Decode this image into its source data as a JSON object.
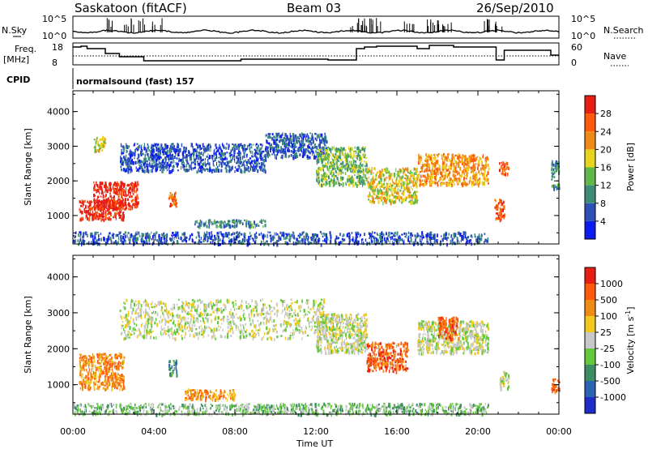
{
  "header": {
    "station": "Saskatoon (fitACF)",
    "beam": "Beam 03",
    "date": "26/Sep/2010"
  },
  "sky_panel": {
    "left_label": "N.Sky",
    "right_label": "N.Search",
    "y_ticks_left": [
      "10^5",
      "10^0"
    ],
    "y_ticks_right": [
      "10^5",
      "10^0"
    ]
  },
  "freq_panel": {
    "left_label_1": "Freq.",
    "left_label_2": "[MHz]",
    "right_label": "Nave",
    "y_ticks_left": [
      "18",
      "8"
    ],
    "y_ticks_right": [
      "60",
      "0"
    ]
  },
  "cpid": {
    "label": "CPID",
    "value": "normalsound (fast) 157"
  },
  "chart_data": [
    {
      "type": "heatmap",
      "parameter": "Power",
      "ylabel": "Slant Range [km]",
      "xlabel": "Time UT",
      "x_ticks": [
        "00:00",
        "04:00",
        "08:00",
        "12:00",
        "16:00",
        "20:00",
        "00:00"
      ],
      "y_ticks": [
        "1000",
        "2000",
        "3000",
        "4000"
      ],
      "ylim": [
        180,
        4600
      ],
      "xlim_hours": [
        0,
        24
      ],
      "colorbar_label": "Power [dB]",
      "colorbar_ticks": [
        "4",
        "8",
        "12",
        "16",
        "20",
        "24",
        "28"
      ],
      "colorbar_colors": [
        "#0a1cf0",
        "#2c4fb8",
        "#3c8c78",
        "#5fb848",
        "#e8d41e",
        "#f08a14",
        "#ff5a0a",
        "#e81e14"
      ],
      "echo_regions": [
        {
          "t": [
            0.3,
            2.5
          ],
          "r": [
            900,
            1500
          ],
          "level": 7
        },
        {
          "t": [
            1.0,
            3.2
          ],
          "r": [
            1200,
            2000
          ],
          "level": 7
        },
        {
          "t": [
            1.0,
            1.6
          ],
          "r": [
            2900,
            3300
          ],
          "level": 4
        },
        {
          "t": [
            2.3,
            9.5
          ],
          "r": [
            2300,
            3100
          ],
          "level": 1
        },
        {
          "t": [
            9.5,
            12.5
          ],
          "r": [
            2700,
            3400
          ],
          "level": 1
        },
        {
          "t": [
            12.0,
            14.5
          ],
          "r": [
            1900,
            3000
          ],
          "level": 3
        },
        {
          "t": [
            14.5,
            17.0
          ],
          "r": [
            1400,
            2400
          ],
          "level": 4
        },
        {
          "t": [
            17.0,
            20.5
          ],
          "r": [
            1900,
            2800
          ],
          "level": 5
        },
        {
          "t": [
            4.7,
            5.1
          ],
          "r": [
            1300,
            1700
          ],
          "level": 6
        },
        {
          "t": [
            6.0,
            9.5
          ],
          "r": [
            700,
            900
          ],
          "level": 2
        },
        {
          "t": [
            0.0,
            20.5
          ],
          "r": [
            200,
            550
          ],
          "level": 1
        },
        {
          "t": [
            20.8,
            21.3
          ],
          "r": [
            900,
            1500
          ],
          "level": 6
        },
        {
          "t": [
            21.0,
            21.5
          ],
          "r": [
            2200,
            2600
          ],
          "level": 6
        },
        {
          "t": [
            23.6,
            24.0
          ],
          "r": [
            1800,
            2600
          ],
          "level": 2
        }
      ]
    },
    {
      "type": "heatmap",
      "parameter": "Velocity",
      "ylabel": "Slant Range [km]",
      "xlabel": "Time UT",
      "x_ticks": [
        "00:00",
        "04:00",
        "08:00",
        "12:00",
        "16:00",
        "20:00",
        "00:00"
      ],
      "y_ticks": [
        "1000",
        "2000",
        "3000",
        "4000"
      ],
      "ylim": [
        180,
        4600
      ],
      "xlim_hours": [
        0,
        24
      ],
      "colorbar_label": "Velocity [m s^-1]",
      "colorbar_ticks": [
        "1000",
        "500",
        "100",
        "25",
        "-25",
        "-100",
        "-500",
        "-1000"
      ],
      "colorbar_colors": [
        "#1e2cc8",
        "#2c64b4",
        "#3c8c64",
        "#64c83c",
        "#c8c8c8",
        "#f0c81e",
        "#f08c14",
        "#ff5a0a",
        "#e81e14"
      ],
      "echo_regions": [
        {
          "t": [
            0.3,
            2.5
          ],
          "r": [
            900,
            1900
          ],
          "level": 6
        },
        {
          "t": [
            2.3,
            12.5
          ],
          "r": [
            2300,
            3400
          ],
          "level": 4
        },
        {
          "t": [
            12.0,
            14.5
          ],
          "r": [
            1900,
            3000
          ],
          "level": 4
        },
        {
          "t": [
            14.5,
            16.5
          ],
          "r": [
            1400,
            2200
          ],
          "level": 7
        },
        {
          "t": [
            17.0,
            20.5
          ],
          "r": [
            1900,
            2800
          ],
          "level": 4
        },
        {
          "t": [
            18.0,
            19.0
          ],
          "r": [
            2300,
            2900
          ],
          "level": 7
        },
        {
          "t": [
            4.7,
            5.1
          ],
          "r": [
            1300,
            1700
          ],
          "level": 2
        },
        {
          "t": [
            5.5,
            8.0
          ],
          "r": [
            600,
            900
          ],
          "level": 6
        },
        {
          "t": [
            0.0,
            20.5
          ],
          "r": [
            200,
            500
          ],
          "level": 3
        },
        {
          "t": [
            21.0,
            21.5
          ],
          "r": [
            900,
            1400
          ],
          "level": 4
        },
        {
          "t": [
            23.6,
            24.0
          ],
          "r": [
            800,
            1200
          ],
          "level": 7
        }
      ]
    }
  ]
}
